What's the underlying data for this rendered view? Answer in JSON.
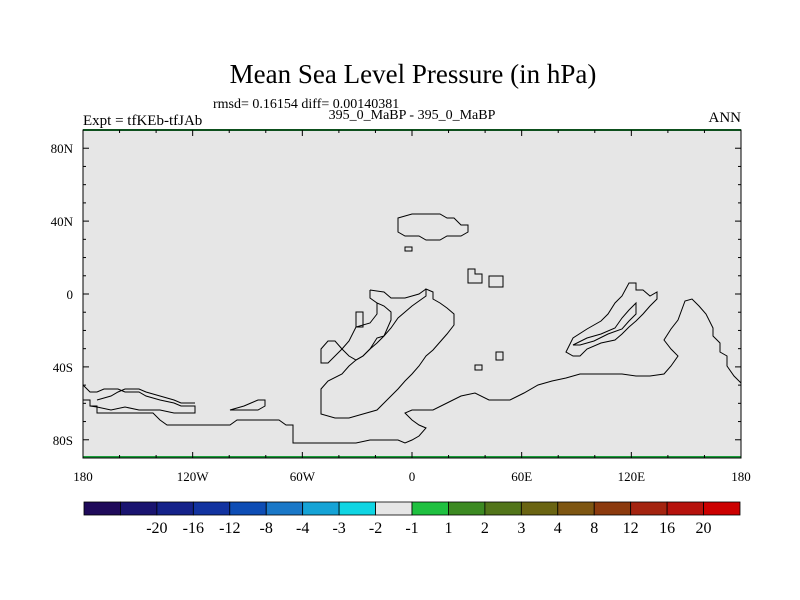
{
  "chart_data": {
    "type": "heatmap",
    "title": "Mean Sea Level Pressure (in hPa)",
    "stats_text": "rmsd= 0.16154 diff= 0.00140381",
    "left_label": "Expt = tfKEb-tfJAb",
    "center_label": "395_0_MaBP - 395_0_MaBP",
    "right_label": "ANN",
    "x_ticks": [
      {
        "value": -180,
        "label": "180"
      },
      {
        "value": -120,
        "label": "120W"
      },
      {
        "value": -60,
        "label": "60W"
      },
      {
        "value": 0,
        "label": "0"
      },
      {
        "value": 60,
        "label": "60E"
      },
      {
        "value": 120,
        "label": "120E"
      },
      {
        "value": 180,
        "label": "180"
      }
    ],
    "y_ticks": [
      {
        "value": 80,
        "label": "80N"
      },
      {
        "value": 40,
        "label": "40N"
      },
      {
        "value": 0,
        "label": "0"
      },
      {
        "value": -40,
        "label": "40S"
      },
      {
        "value": -80,
        "label": "80S"
      }
    ],
    "xlim": [
      -180,
      180
    ],
    "ylim": [
      -90,
      90
    ],
    "field_value_bin": "-1 to 1",
    "colorbar": {
      "colors": [
        "#1f0a5a",
        "#1a1470",
        "#15228a",
        "#1233a0",
        "#0e4db5",
        "#1a78c8",
        "#15a3d6",
        "#10d5e3",
        "#e6e6e6",
        "#1fc040",
        "#3c8a22",
        "#52751a",
        "#6a6412",
        "#7e5612",
        "#8c3a0e",
        "#a42410",
        "#b6120c",
        "#cc0000"
      ],
      "labels": [
        "-20",
        "-16",
        "-12",
        "-8",
        "-4",
        "-3",
        "-2",
        "-1",
        "1",
        "2",
        "3",
        "4",
        "8",
        "12",
        "16",
        "20"
      ]
    }
  }
}
